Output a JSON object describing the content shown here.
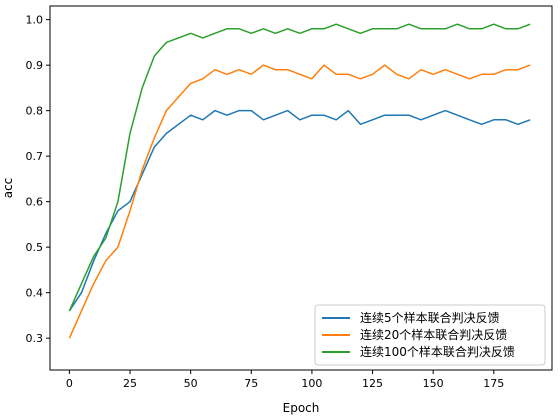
{
  "chart_data": {
    "type": "line",
    "xlabel": "Epoch",
    "ylabel": "acc",
    "xlim": [
      -8,
      199
    ],
    "ylim": [
      0.23,
      1.03
    ],
    "x_ticks": [
      0,
      25,
      50,
      75,
      100,
      125,
      150,
      175
    ],
    "y_ticks": [
      0.3,
      0.4,
      0.5,
      0.6,
      0.7,
      0.8,
      0.9,
      1.0
    ],
    "x_tick_labels": [
      "0",
      "25",
      "50",
      "75",
      "100",
      "125",
      "150",
      "175"
    ],
    "y_tick_labels": [
      "0.3",
      "0.4",
      "0.5",
      "0.6",
      "0.7",
      "0.8",
      "0.9",
      "1.0"
    ],
    "legend_position": "lower-right",
    "grid": false,
    "series": [
      {
        "name": "连续5个样本联合判决反馈",
        "color": "#1f77b4",
        "x": [
          0,
          5,
          10,
          15,
          20,
          25,
          30,
          35,
          40,
          45,
          50,
          55,
          60,
          65,
          70,
          75,
          80,
          85,
          90,
          95,
          100,
          105,
          110,
          115,
          120,
          125,
          130,
          135,
          140,
          145,
          150,
          155,
          160,
          165,
          170,
          175,
          180,
          185,
          190
        ],
        "values": [
          0.36,
          0.4,
          0.47,
          0.53,
          0.58,
          0.6,
          0.66,
          0.72,
          0.75,
          0.77,
          0.79,
          0.78,
          0.8,
          0.79,
          0.8,
          0.8,
          0.78,
          0.79,
          0.8,
          0.78,
          0.79,
          0.79,
          0.78,
          0.8,
          0.77,
          0.78,
          0.79,
          0.79,
          0.79,
          0.78,
          0.79,
          0.8,
          0.79,
          0.78,
          0.77,
          0.78,
          0.78,
          0.77,
          0.78
        ]
      },
      {
        "name": "连续20个样本联合判决反馈",
        "color": "#ff7f0e",
        "x": [
          0,
          5,
          10,
          15,
          20,
          25,
          30,
          35,
          40,
          45,
          50,
          55,
          60,
          65,
          70,
          75,
          80,
          85,
          90,
          95,
          100,
          105,
          110,
          115,
          120,
          125,
          130,
          135,
          140,
          145,
          150,
          155,
          160,
          165,
          170,
          175,
          180,
          185,
          190
        ],
        "values": [
          0.3,
          0.36,
          0.42,
          0.47,
          0.5,
          0.58,
          0.67,
          0.74,
          0.8,
          0.83,
          0.86,
          0.87,
          0.89,
          0.88,
          0.89,
          0.88,
          0.9,
          0.89,
          0.89,
          0.88,
          0.87,
          0.9,
          0.88,
          0.88,
          0.87,
          0.88,
          0.9,
          0.88,
          0.87,
          0.89,
          0.88,
          0.89,
          0.88,
          0.87,
          0.88,
          0.88,
          0.89,
          0.89,
          0.9
        ]
      },
      {
        "name": "连续100个样本联合判决反馈",
        "color": "#2ca02c",
        "x": [
          0,
          5,
          10,
          15,
          20,
          25,
          30,
          35,
          40,
          45,
          50,
          55,
          60,
          65,
          70,
          75,
          80,
          85,
          90,
          95,
          100,
          105,
          110,
          115,
          120,
          125,
          130,
          135,
          140,
          145,
          150,
          155,
          160,
          165,
          170,
          175,
          180,
          185,
          190
        ],
        "values": [
          0.36,
          0.42,
          0.48,
          0.52,
          0.6,
          0.75,
          0.85,
          0.92,
          0.95,
          0.96,
          0.97,
          0.96,
          0.97,
          0.98,
          0.98,
          0.97,
          0.98,
          0.97,
          0.98,
          0.97,
          0.98,
          0.98,
          0.99,
          0.98,
          0.97,
          0.98,
          0.98,
          0.98,
          0.99,
          0.98,
          0.98,
          0.98,
          0.99,
          0.98,
          0.98,
          0.99,
          0.98,
          0.98,
          0.99
        ]
      }
    ]
  }
}
